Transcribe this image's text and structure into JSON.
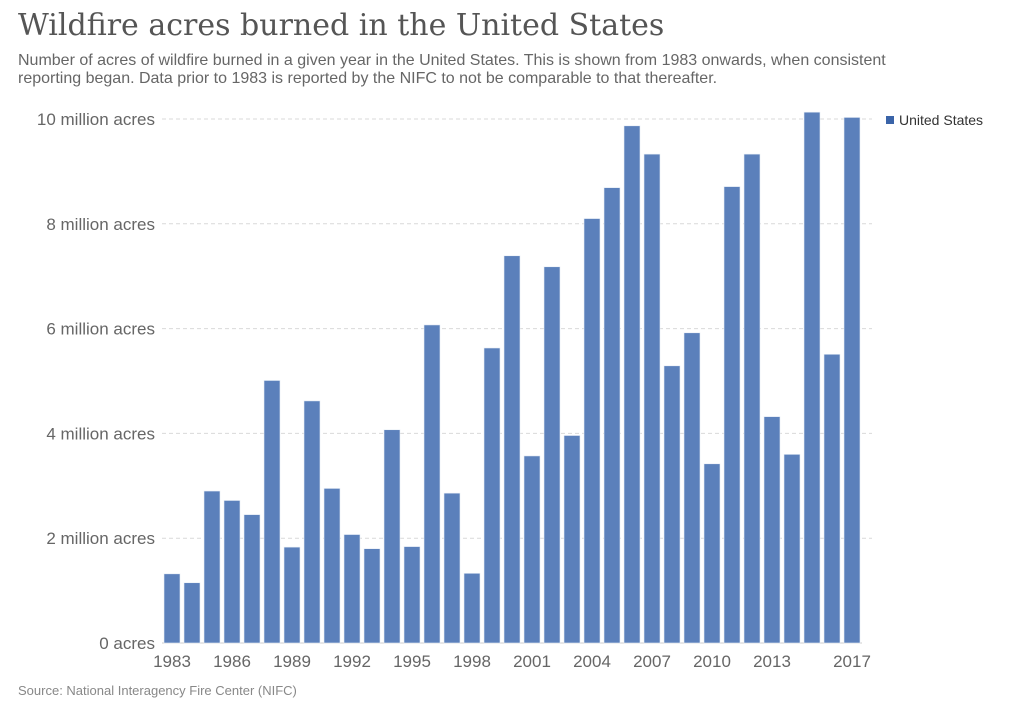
{
  "header": {
    "title": "Wildfire acres burned in the United States",
    "subtitle": "Number of acres of wildfire burned in a given year in the United States. This is shown from 1983 onwards, when consistent reporting began. Data prior to 1983 is reported by the NIFC to not be comparable to that thereafter."
  },
  "footer": {
    "source": "Source: National Interagency Fire Center (NIFC)"
  },
  "colors": {
    "bar": "#5b80bb",
    "legend_marker": "#3a64a8",
    "grid": "#d9d9d9"
  },
  "chart_data": {
    "type": "bar",
    "title": "Wildfire acres burned in the United States",
    "xlabel": "",
    "ylabel": "",
    "ylim": [
      0,
      10000000
    ],
    "grid": true,
    "legend_position": "top-right",
    "yticks": [
      0,
      2000000,
      4000000,
      6000000,
      8000000,
      10000000
    ],
    "ytick_labels": [
      "0 acres",
      "2 million acres",
      "4 million acres",
      "6 million acres",
      "8 million acres",
      "10 million acres"
    ],
    "xtick_labels": [
      "1983",
      "1986",
      "1989",
      "1992",
      "1995",
      "1998",
      "2001",
      "2004",
      "2007",
      "2010",
      "2013",
      "2017"
    ],
    "categories": [
      "1983",
      "1984",
      "1985",
      "1986",
      "1987",
      "1988",
      "1989",
      "1990",
      "1991",
      "1992",
      "1993",
      "1994",
      "1995",
      "1996",
      "1997",
      "1998",
      "1999",
      "2000",
      "2001",
      "2002",
      "2003",
      "2004",
      "2005",
      "2006",
      "2007",
      "2008",
      "2009",
      "2010",
      "2011",
      "2012",
      "2013",
      "2014",
      "2015",
      "2016",
      "2017"
    ],
    "series": [
      {
        "name": "United States",
        "values": [
          1320000,
          1150000,
          2900000,
          2720000,
          2450000,
          5010000,
          1830000,
          4620000,
          2950000,
          2070000,
          1800000,
          4070000,
          1840000,
          6070000,
          2860000,
          1330000,
          5630000,
          7390000,
          3570000,
          7180000,
          3960000,
          8100000,
          8690000,
          9870000,
          9330000,
          5290000,
          5920000,
          3420000,
          8710000,
          9330000,
          4320000,
          3600000,
          10130000,
          5510000,
          10030000
        ]
      }
    ]
  }
}
